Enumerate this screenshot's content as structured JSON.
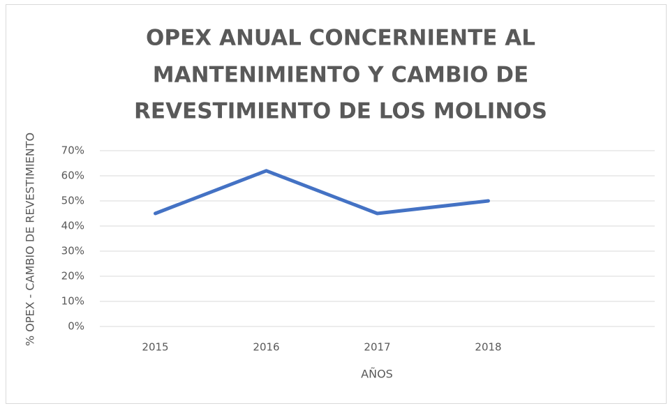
{
  "chart_data": {
    "type": "line",
    "title": [
      "OPEX ANUAL CONCERNIENTE AL",
      "MANTENIMIENTO Y CAMBIO DE",
      "REVESTIMIENTO DE LOS MOLINOS"
    ],
    "x_label": "AÑOS",
    "y_label": "% OPEX - CAMBIO DE REVESTIMIENTO",
    "categories": [
      "2015",
      "2016",
      "2017",
      "2018",
      null
    ],
    "series": [
      {
        "name": "% OPEX",
        "color": "#4472c4",
        "values": [
          45,
          62,
          45,
          50,
          null
        ]
      }
    ],
    "ylim": [
      0,
      70
    ],
    "yticks": [
      {
        "value": 0,
        "label": "0%"
      },
      {
        "value": 10,
        "label": "10%"
      },
      {
        "value": 20,
        "label": "20%"
      },
      {
        "value": 30,
        "label": "30%"
      },
      {
        "value": 40,
        "label": "40%"
      },
      {
        "value": 50,
        "label": "50%"
      },
      {
        "value": 60,
        "label": "60%"
      },
      {
        "value": 70,
        "label": "70%"
      }
    ],
    "grid": true
  }
}
